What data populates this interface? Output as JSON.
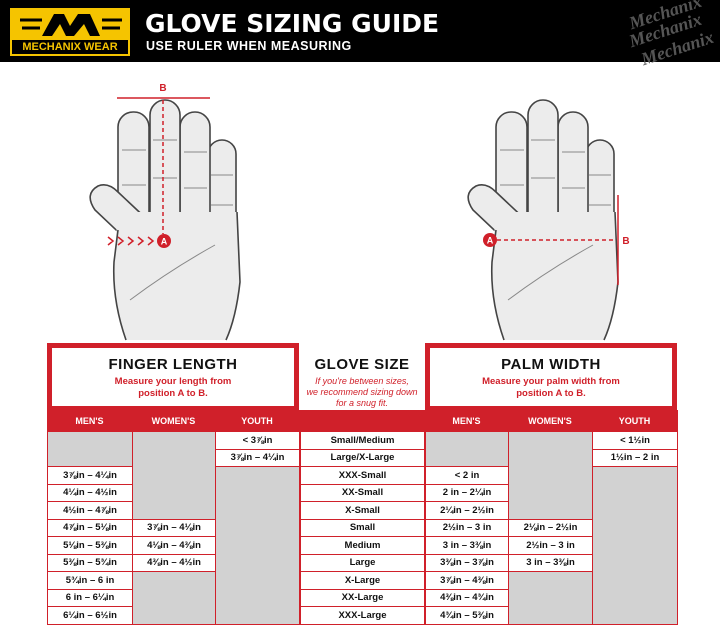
{
  "header": {
    "logo": "MECHANIX WEAR",
    "title": "GLOVE SIZING GUIDE",
    "subtitle": "USE RULER WHEN MEASURING",
    "watermark": "Mechanix"
  },
  "diagrams": {
    "finger": {
      "point_a": "A",
      "point_b": "B"
    },
    "palm": {
      "point_a": "A",
      "point_b": "B"
    }
  },
  "finger_length": {
    "title": "FINGER LENGTH",
    "description": [
      "Measure your length from",
      "position A to B."
    ],
    "columns": [
      {
        "header": "MEN'S",
        "values": [
          null,
          null,
          "3⅞in – 4¼in",
          "4¼in – 4½in",
          "4½in – 4⅞in",
          "4⅞in – 5⅛in",
          "5⅛in – 5⅜in",
          "5⅜in – 5¾in",
          "5¾in – 6 in",
          "6 in – 6¼in",
          "6¼in – 6½in"
        ]
      },
      {
        "header": "WOMEN'S",
        "values": [
          null,
          null,
          null,
          null,
          null,
          "3⅞in – 4⅛in",
          "4⅛in – 4⅜in",
          "4⅜in – 4½in",
          null,
          null,
          null
        ]
      },
      {
        "header": "YOUTH",
        "values": [
          "< 3⅞in",
          "3⅞in – 4¼in",
          null,
          null,
          null,
          null,
          null,
          null,
          null,
          null,
          null
        ]
      }
    ]
  },
  "glove_size": {
    "title": "GLOVE SIZE",
    "note": [
      "If you're between sizes,",
      "we recommend sizing down",
      "for a snug fit."
    ],
    "sizes": [
      "Small/Medium",
      "Large/X-Large",
      "XXX-Small",
      "XX-Small",
      "X-Small",
      "Small",
      "Medium",
      "Large",
      "X-Large",
      "XX-Large",
      "XXX-Large"
    ]
  },
  "palm_width": {
    "title": "PALM WIDTH",
    "description": [
      "Measure your palm width from",
      "position A to B."
    ],
    "columns": [
      {
        "header": "MEN'S",
        "values": [
          null,
          null,
          "< 2 in",
          "2 in – 2¼in",
          "2¼in – 2½in",
          "2½in – 3 in",
          "3 in – 3⅜in",
          "3⅜in – 3⅞in",
          "3⅞in – 4⅜in",
          "4⅜in – 4¾in",
          "4¾in – 5⅜in"
        ]
      },
      {
        "header": "WOMEN'S",
        "values": [
          null,
          null,
          null,
          null,
          null,
          "2⅛in – 2½in",
          "2½in – 3 in",
          "3 in – 3⅜in",
          null,
          null,
          null
        ]
      },
      {
        "header": "YOUTH",
        "values": [
          "< 1½in",
          "1½in – 2 in",
          null,
          null,
          null,
          null,
          null,
          null,
          null,
          null,
          null
        ]
      }
    ]
  }
}
